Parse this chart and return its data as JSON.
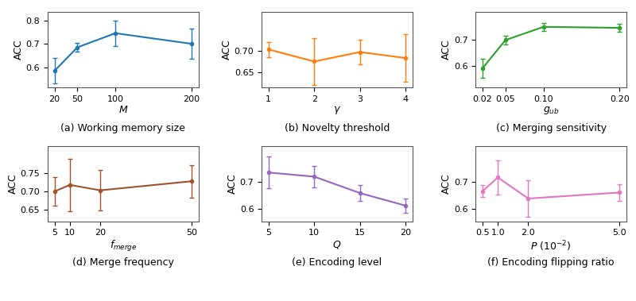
{
  "plots": [
    {
      "label": "(a) Working memory size",
      "xlabel": "$M$",
      "ylabel": "ACC",
      "color": "#1f77b4",
      "x": [
        20,
        50,
        100,
        200
      ],
      "y": [
        0.585,
        0.685,
        0.745,
        0.7
      ],
      "yerr": [
        0.055,
        0.018,
        0.055,
        0.065
      ],
      "ylim": [
        0.515,
        0.835
      ],
      "yticks": [
        0.6,
        0.7,
        0.8
      ],
      "xticks": [
        20,
        50,
        100,
        200
      ],
      "xticklabels": [
        "20",
        "50",
        "100",
        "200"
      ]
    },
    {
      "label": "(b) Novelty threshold",
      "xlabel": "$\\gamma$",
      "ylabel": "ACC",
      "color": "#ff7f0e",
      "x": [
        1,
        2,
        3,
        4
      ],
      "y": [
        0.703,
        0.675,
        0.697,
        0.683
      ],
      "yerr": [
        0.018,
        0.055,
        0.028,
        0.055
      ],
      "ylim": [
        0.615,
        0.79
      ],
      "yticks": [
        0.65,
        0.7
      ],
      "xticks": [
        1,
        2,
        3,
        4
      ],
      "xticklabels": [
        "1",
        "2",
        "3",
        "4"
      ]
    },
    {
      "label": "(c) Merging sensitivity",
      "xlabel": "$g_{ub}$",
      "ylabel": "ACC",
      "color": "#2ca02c",
      "x": [
        0.02,
        0.05,
        0.1,
        0.2
      ],
      "y": [
        0.59,
        0.7,
        0.752,
        0.748
      ],
      "yerr": [
        0.038,
        0.018,
        0.015,
        0.015
      ],
      "ylim": [
        0.515,
        0.81
      ],
      "yticks": [
        0.6,
        0.7
      ],
      "xticks": [
        0.02,
        0.05,
        0.1,
        0.2
      ],
      "xticklabels": [
        "0.02",
        "0.05",
        "0.10",
        "0.20"
      ]
    },
    {
      "label": "(d) Merge frequency",
      "xlabel": "$f_{merge}$",
      "ylabel": "ACC",
      "color": "#a0522d",
      "x": [
        5,
        10,
        20,
        50
      ],
      "y": [
        0.7,
        0.718,
        0.703,
        0.728
      ],
      "yerr": [
        0.04,
        0.072,
        0.055,
        0.045
      ],
      "ylim": [
        0.618,
        0.825
      ],
      "yticks": [
        0.65,
        0.7,
        0.75
      ],
      "xticks": [
        5,
        10,
        20,
        50
      ],
      "xticklabels": [
        "5",
        "10",
        "20",
        "50"
      ]
    },
    {
      "label": "(e) Encoding level",
      "xlabel": "$Q$",
      "ylabel": "ACC",
      "color": "#9467bd",
      "x": [
        5,
        10,
        15,
        20
      ],
      "y": [
        0.733,
        0.718,
        0.658,
        0.612
      ],
      "yerr": [
        0.058,
        0.04,
        0.028,
        0.025
      ],
      "ylim": [
        0.555,
        0.83
      ],
      "yticks": [
        0.6,
        0.7
      ],
      "xticks": [
        5,
        10,
        15,
        20
      ],
      "xticklabels": [
        "5",
        "10",
        "15",
        "20"
      ]
    },
    {
      "label": "(f) Encoding flipping ratio",
      "xlabel": "$P$ ($10^{-2}$)",
      "ylabel": "ACC",
      "color": "#e377c2",
      "x": [
        0.5,
        1.0,
        2.0,
        5.0
      ],
      "y": [
        0.665,
        0.715,
        0.638,
        0.66
      ],
      "yerr": [
        0.022,
        0.062,
        0.068,
        0.03
      ],
      "ylim": [
        0.555,
        0.83
      ],
      "yticks": [
        0.6,
        0.7
      ],
      "xticks": [
        0.5,
        1.0,
        2.0,
        5.0
      ],
      "xticklabels": [
        "0.5",
        "1.0",
        "2.0",
        "5.0"
      ]
    }
  ],
  "figsize": [
    8.0,
    3.79
  ],
  "dpi": 100
}
